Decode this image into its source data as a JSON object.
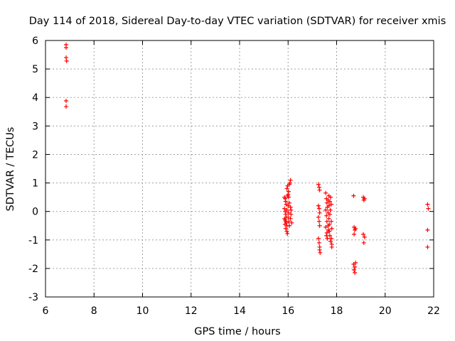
{
  "chart_data": {
    "type": "scatter",
    "title": "Day 114 of 2018, Sidereal Day-to-day VTEC variation (SDTVAR) for receiver xmis",
    "xlabel": "GPS time / hours",
    "ylabel": "SDTVAR / TECUs",
    "xlim": [
      6,
      22
    ],
    "ylim": [
      -3,
      6
    ],
    "xticks": [
      6,
      8,
      10,
      12,
      14,
      16,
      18,
      20,
      22
    ],
    "yticks": [
      -3,
      -2,
      -1,
      0,
      1,
      2,
      3,
      4,
      5,
      6
    ],
    "grid": true,
    "marker": "+",
    "marker_color": "#ff0000",
    "series": [
      {
        "name": "SDTVAR",
        "points": [
          [
            6.85,
            5.85
          ],
          [
            6.85,
            5.75
          ],
          [
            6.85,
            5.4
          ],
          [
            6.87,
            5.28
          ],
          [
            6.85,
            3.88
          ],
          [
            6.85,
            3.68
          ],
          [
            15.85,
            0.5
          ],
          [
            15.88,
            0.45
          ],
          [
            15.9,
            0.35
          ],
          [
            15.92,
            0.25
          ],
          [
            15.85,
            0.1
          ],
          [
            15.88,
            0.0
          ],
          [
            15.9,
            -0.1
          ],
          [
            15.92,
            -0.2
          ],
          [
            15.85,
            -0.25
          ],
          [
            15.88,
            -0.3
          ],
          [
            15.9,
            -0.35
          ],
          [
            15.93,
            -0.4
          ],
          [
            15.95,
            -0.5
          ],
          [
            15.9,
            -0.6
          ],
          [
            15.95,
            -0.7
          ],
          [
            15.97,
            -0.78
          ],
          [
            15.98,
            0.55
          ],
          [
            16.0,
            0.6
          ],
          [
            15.95,
            0.8
          ],
          [
            15.98,
            0.9
          ],
          [
            16.02,
            0.7
          ],
          [
            16.02,
            0.5
          ],
          [
            16.0,
            0.2
          ],
          [
            16.02,
            -0.05
          ],
          [
            16.0,
            -0.2
          ],
          [
            16.03,
            -0.35
          ],
          [
            16.05,
            -0.5
          ],
          [
            16.05,
            0.95
          ],
          [
            16.08,
            1.0
          ],
          [
            16.1,
            1.1
          ],
          [
            16.1,
            0.15
          ],
          [
            16.12,
            0.05
          ],
          [
            16.12,
            -0.1
          ],
          [
            16.1,
            -0.25
          ],
          [
            16.15,
            -0.4
          ],
          [
            15.95,
            0.05
          ],
          [
            15.87,
            -0.45
          ],
          [
            16.05,
            0.3
          ],
          [
            17.25,
            0.95
          ],
          [
            17.28,
            0.85
          ],
          [
            17.3,
            0.75
          ],
          [
            17.25,
            0.2
          ],
          [
            17.28,
            0.1
          ],
          [
            17.3,
            -0.05
          ],
          [
            17.25,
            -0.2
          ],
          [
            17.28,
            -0.35
          ],
          [
            17.3,
            -0.5
          ],
          [
            17.25,
            -0.95
          ],
          [
            17.3,
            -1.25
          ],
          [
            17.3,
            -1.35
          ],
          [
            17.32,
            -1.45
          ],
          [
            17.28,
            -1.1
          ],
          [
            17.55,
            0.65
          ],
          [
            17.58,
            0.45
          ],
          [
            17.6,
            0.3
          ],
          [
            17.55,
            0.05
          ],
          [
            17.58,
            -0.15
          ],
          [
            17.6,
            -0.35
          ],
          [
            17.55,
            -0.55
          ],
          [
            17.6,
            -0.75
          ],
          [
            17.58,
            -0.85
          ],
          [
            17.62,
            -0.95
          ],
          [
            17.65,
            0.4
          ],
          [
            17.68,
            0.2
          ],
          [
            17.65,
            -0.05
          ],
          [
            17.68,
            -0.25
          ],
          [
            17.65,
            -0.5
          ],
          [
            17.7,
            -0.7
          ],
          [
            17.68,
            0.55
          ],
          [
            17.72,
            0.35
          ],
          [
            17.72,
            -0.1
          ],
          [
            17.7,
            -0.45
          ],
          [
            17.72,
            -0.85
          ],
          [
            17.75,
            -1.05
          ],
          [
            17.75,
            0.5
          ],
          [
            17.78,
            0.25
          ],
          [
            17.78,
            -0.35
          ],
          [
            17.8,
            -0.6
          ],
          [
            17.78,
            -0.95
          ],
          [
            17.8,
            -1.15
          ],
          [
            17.8,
            -1.25
          ],
          [
            17.62,
            0.15
          ],
          [
            17.66,
            -0.65
          ],
          [
            17.74,
            0.05
          ],
          [
            18.7,
            0.55
          ],
          [
            18.72,
            -0.55
          ],
          [
            18.75,
            -0.65
          ],
          [
            18.72,
            -0.8
          ],
          [
            18.78,
            -0.6
          ],
          [
            18.7,
            -1.85
          ],
          [
            18.75,
            -1.95
          ],
          [
            18.72,
            -2.05
          ],
          [
            18.75,
            -2.15
          ],
          [
            18.78,
            -1.8
          ],
          [
            19.1,
            0.5
          ],
          [
            19.12,
            0.4
          ],
          [
            19.15,
            0.45
          ],
          [
            19.1,
            -0.8
          ],
          [
            19.15,
            -0.9
          ],
          [
            19.12,
            -1.1
          ],
          [
            21.75,
            0.25
          ],
          [
            21.78,
            0.1
          ],
          [
            21.75,
            -0.65
          ],
          [
            21.75,
            -1.25
          ]
        ]
      }
    ]
  }
}
